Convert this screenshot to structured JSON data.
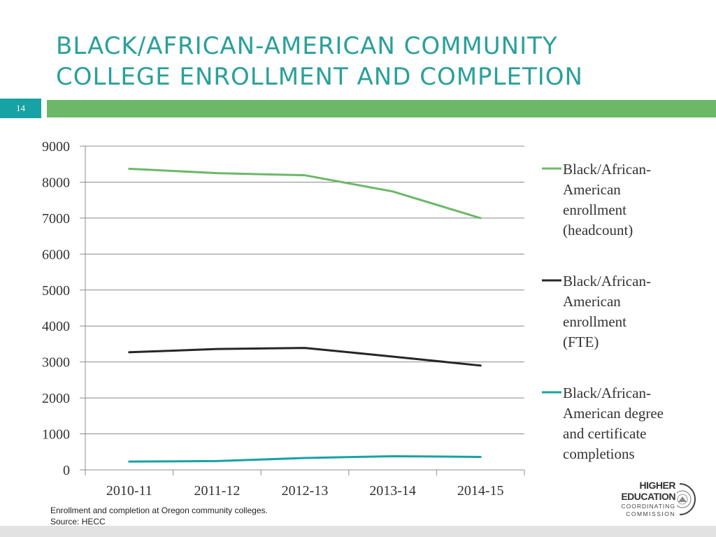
{
  "slide": {
    "title_line1": "BLACK/AFRICAN-AMERICAN COMMUNITY",
    "title_line2": "COLLEGE ENROLLMENT AND COMPLETION",
    "page_number": "14"
  },
  "colors": {
    "title": "#2aa09a",
    "title_bar": "#6cb868",
    "page_box": "#17a2a4"
  },
  "chart_data": {
    "type": "line",
    "title": "",
    "xlabel": "",
    "ylabel": "",
    "categories": [
      "2010-11",
      "2011-12",
      "2012-13",
      "2013-14",
      "2014-15"
    ],
    "ylim": [
      0,
      9000
    ],
    "yticks": [
      0,
      1000,
      2000,
      3000,
      4000,
      5000,
      6000,
      7000,
      8000,
      9000
    ],
    "grid": true,
    "legend_position": "right",
    "series": [
      {
        "name": "Black/African-American enrollment (headcount)",
        "legend_lines": [
          "Black/African-",
          "American",
          "enrollment",
          "(headcount)"
        ],
        "color": "#6cb868",
        "values": [
          8370,
          8250,
          8190,
          7740,
          7000
        ]
      },
      {
        "name": "Black/African-American enrollment (FTE)",
        "legend_lines": [
          "Black/African-",
          "American",
          "enrollment",
          "(FTE)"
        ],
        "color": "#262626",
        "values": [
          3270,
          3360,
          3390,
          3150,
          2900
        ]
      },
      {
        "name": "Black/African-American degree and certificate completions",
        "legend_lines": [
          "Black/African-",
          "American degree",
          "and certificate",
          "completions"
        ],
        "color": "#17a2a4",
        "values": [
          230,
          245,
          330,
          380,
          360
        ]
      }
    ]
  },
  "footnote": {
    "line1": "Enrollment and completion at Oregon community colleges.",
    "line2": "Source: HECC"
  },
  "logo": {
    "line1": "HIGHER",
    "line2": "EDUCATION",
    "line3": "COORDINATING",
    "line4": "COMMISSION"
  }
}
